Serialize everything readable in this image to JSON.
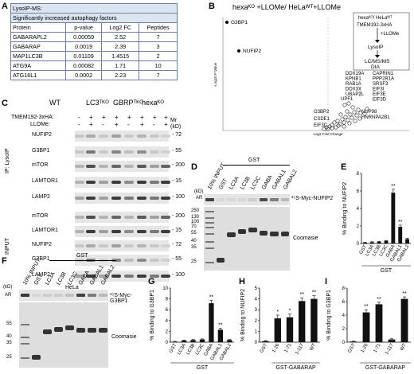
{
  "panel_labels": {
    "A": "A",
    "B": "B",
    "C": "C",
    "D": "D",
    "E": "E",
    "F": "F",
    "G": "G",
    "H": "H",
    "I": "I"
  },
  "panelA": {
    "title1": "LysoIP-MS:",
    "title2": "Significantly increased autophagy factors",
    "headers": [
      "Protein",
      "p-value",
      "Log2 FC",
      "Peptides"
    ],
    "rows": [
      [
        "GABARAPL2",
        "0.00059",
        "2.52",
        "7"
      ],
      [
        "GABARAP",
        "0.0019",
        "2.39",
        "3"
      ],
      [
        "MAP1LC3B",
        "0.01109",
        "1.4515",
        "2"
      ],
      [
        "ATG9A",
        "0.00082",
        "1.71",
        "10"
      ],
      [
        "ATG16L1",
        "0.0002",
        "2.23",
        "7"
      ]
    ]
  },
  "panelB": {
    "title": "hexaᴷᴼ +LLOMe/ HeLaᵂᵀ+LLOMe",
    "ylabel": "-Log10 P Value",
    "xlabel": "Log2 Fold Change",
    "labels": {
      "g3bp1": "G3BP1",
      "nufip2": "NUFIP2",
      "g3bp2": "G3BP2",
      "csde1": "CSDE1",
      "eif3c": "EIF3C",
      "upf1": "UPF1",
      "nup98": "NUP98",
      "hnrnpa2b1": "HNRNPA2B1"
    },
    "list_left": [
      "DDX19A",
      "KPNB1",
      "RAB1A",
      "DDX3X",
      "UBAP2L"
    ],
    "list_right": [
      "CAPRIN1",
      "PPP2R1A",
      "SRSF3",
      "EIF3I",
      "EIF3E",
      "EIF3D"
    ],
    "flow": {
      "line1": "hexaᴷᴼ/ HeLaᵂᵀ",
      "line2": "TMEM192-3xHA",
      "llome": "+LLOMe",
      "lysoip": "LysoIP",
      "ms1": "LC/MS/MS",
      "ms2": "DIA"
    }
  },
  "panelC": {
    "groups": [
      "WT",
      "LC3ᵀᴷᴼ",
      "GBRPᵀᴷᴼ",
      "hexaᴷᴼ"
    ],
    "tmem": "TMEM192-3xHA:",
    "llome": "LLOMe:",
    "signs_tmem": [
      "-",
      "+",
      "+",
      "+",
      "+",
      "+",
      "+",
      "+"
    ],
    "signs_llome": [
      "-",
      "+",
      "-",
      "+",
      "-",
      "+",
      "-",
      "+"
    ],
    "mr": "Mr",
    "kd": "(kD)",
    "ip_label": "IP: LysoIP",
    "input_label": "INPUT",
    "ip_bands": [
      {
        "name": "NUFIP2",
        "mw": "72"
      },
      {
        "name": "G3BP1",
        "mw": "55"
      },
      {
        "name": "mTOR",
        "mw": "200"
      },
      {
        "name": "LAMTOR1",
        "mw": "15"
      },
      {
        "name": "LAMP2",
        "mw": "100"
      }
    ],
    "input_bands": [
      {
        "name": "mTOR",
        "mw": "200"
      },
      {
        "name": "LAMTOR1",
        "mw": "15"
      },
      {
        "name": "NUFIP2",
        "mw": "72"
      },
      {
        "name": "G3BP1",
        "mw": "55"
      },
      {
        "name": "LAMP2",
        "mw": "100"
      }
    ],
    "cell": "HeLa"
  },
  "panelD": {
    "gst": "GST",
    "lanes": [
      "10% INPUT",
      "GST",
      "LC3A",
      "LC3B",
      "LC3C",
      "GABA",
      "GABAL1",
      "GABAL2"
    ],
    "kd": "(kD)",
    "ar": "AR",
    "mw": [
      "250",
      "130",
      "100",
      "70",
      "55",
      "40",
      "35",
      "25"
    ],
    "probe": "³⁵S-Myc-NUFIP2",
    "stain": "Coomasie"
  },
  "panelF": {
    "gst": "GST",
    "lanes": [
      "10% INPUT",
      "GST",
      "LC3A",
      "LC3B",
      "LC3C",
      "GABA",
      "GABAL1",
      "GABAL2"
    ],
    "kd": "(kD)",
    "ar": "AR",
    "mw": [
      "55",
      "40",
      "35",
      "25"
    ],
    "probe": "³⁵S-Myc-G3BP1",
    "stain": "Coomasie"
  },
  "chart_data": [
    {
      "panel": "B",
      "type": "scatter",
      "title": "hexaᴷᴼ +LLOMe/ HeLaᵂᵀ+LLOMe",
      "xlabel": "Log2 Fold Change",
      "ylabel": "-Log10 P Value",
      "highlighted": [
        {
          "label": "G3BP1",
          "x": 0.5,
          "y": 9.6
        },
        {
          "label": "NUFIP2",
          "x": 1.2,
          "y": 7.9
        }
      ]
    },
    {
      "panel": "E",
      "type": "bar",
      "ylabel": "% Binding to NUFIP2",
      "xgroup": "GST",
      "categories": [
        "GST",
        "LC3A",
        "LC3B",
        "LC3C",
        "GABA",
        "GABAL1",
        "GABAL2"
      ],
      "values": [
        0.1,
        0.15,
        0.2,
        0.3,
        5.8,
        1.9,
        0.5
      ],
      "errors": [
        0.05,
        0.05,
        0.05,
        0.05,
        0.4,
        0.2,
        0.1
      ],
      "sig": [
        "",
        "",
        "",
        "",
        "**",
        "**",
        ""
      ],
      "ylim": [
        0,
        8
      ],
      "yticks": [
        0,
        2,
        4,
        6,
        8
      ]
    },
    {
      "panel": "G",
      "type": "bar",
      "ylabel": "% Binding to G3BP1",
      "xgroup": "GST",
      "categories": [
        "GST",
        "LC3A",
        "LC3B",
        "LC3C",
        "GABA",
        "GABAL1",
        "GABAL2"
      ],
      "values": [
        0.1,
        0.3,
        0.4,
        0.5,
        7.2,
        2.3,
        0.4
      ],
      "errors": [
        0.05,
        0.1,
        0.1,
        0.1,
        0.5,
        0.3,
        0.1
      ],
      "sig": [
        "",
        "",
        "",
        "",
        "**",
        "**",
        ""
      ],
      "ylim": [
        0,
        10
      ],
      "yticks": [
        0,
        2,
        4,
        6,
        8,
        10
      ]
    },
    {
      "panel": "H",
      "type": "bar",
      "ylabel": "% Binding to NUFIP2",
      "xgroup": "GST-GABARAP",
      "categories": [
        "GST",
        "1-26",
        "1-71",
        "1-117",
        "WT"
      ],
      "values": [
        0.1,
        2.2,
        2.3,
        3.8,
        4.0
      ],
      "errors": [
        0.05,
        0.3,
        0.3,
        0.3,
        0.3
      ],
      "sig": [
        "",
        "*",
        "*",
        "**",
        "**"
      ],
      "ylim": [
        0,
        5
      ],
      "yticks": [
        0,
        1,
        2,
        3,
        4,
        5
      ]
    },
    {
      "panel": "I",
      "type": "bar",
      "ylabel": "% Binding to G3BP1",
      "xgroup": "GST-GABARAP",
      "categories": [
        "GST",
        "1-26",
        "1-71",
        "1-117",
        "WT"
      ],
      "values": [
        0.1,
        4.4,
        5.6,
        0.4,
        6.4
      ],
      "errors": [
        0.05,
        0.4,
        0.3,
        0.1,
        0.3
      ],
      "sig": [
        "",
        "**",
        "**",
        "",
        "**"
      ],
      "ylim": [
        0,
        8
      ],
      "yticks": [
        0,
        2,
        4,
        6,
        8
      ]
    }
  ]
}
